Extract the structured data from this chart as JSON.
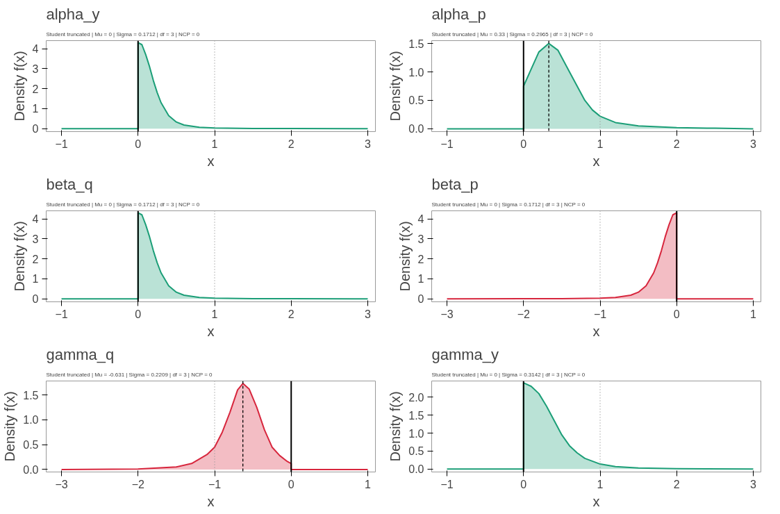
{
  "chart_data": [
    {
      "type": "area",
      "title": "alpha_y",
      "subtitle": "Student truncated | Mu = 0 | Sigma = 0.1712 | df = 3 | NCP = 0",
      "xlabel": "x",
      "ylabel": "Density f(x)",
      "x": [
        -1,
        0,
        0,
        0.05,
        0.1,
        0.15,
        0.2,
        0.25,
        0.3,
        0.4,
        0.5,
        0.6,
        0.8,
        1.0,
        1.5,
        2,
        3
      ],
      "series": [
        {
          "color": "#1b9e77",
          "values": [
            0,
            0,
            4.3,
            4.2,
            3.7,
            3.1,
            2.4,
            1.8,
            1.3,
            0.65,
            0.33,
            0.18,
            0.07,
            0.03,
            0.01,
            0.01,
            0
          ]
        }
      ],
      "xlim": [
        -1.2,
        3.1
      ],
      "ylim": [
        -0.15,
        4.4
      ],
      "xticks": [
        -1,
        0,
        1,
        2,
        3
      ],
      "yticks": [
        0,
        1,
        2,
        3,
        4
      ],
      "ref_lines": [
        {
          "axis": "x",
          "value": 0,
          "color": "#000000",
          "line_style": "solid"
        },
        {
          "axis": "x",
          "value": 1,
          "color": "#999999",
          "line_style": "dotted"
        }
      ]
    },
    {
      "type": "area",
      "title": "alpha_p",
      "subtitle": "Student truncated | Mu = 0.33 | Sigma = 0.2965 | df = 3 | NCP = 0",
      "xlabel": "x",
      "ylabel": "Density f(x)",
      "x": [
        -1,
        0,
        0,
        0.1,
        0.2,
        0.33,
        0.45,
        0.6,
        0.7,
        0.8,
        0.9,
        1.0,
        1.2,
        1.5,
        2,
        2.5,
        3
      ],
      "series": [
        {
          "color": "#1b9e77",
          "values": [
            0,
            0,
            0.75,
            1.05,
            1.35,
            1.5,
            1.38,
            1.0,
            0.75,
            0.5,
            0.33,
            0.22,
            0.11,
            0.05,
            0.02,
            0.01,
            0
          ]
        }
      ],
      "xlim": [
        -1.2,
        3.1
      ],
      "ylim": [
        -0.05,
        1.55
      ],
      "xticks": [
        -1,
        0,
        1,
        2,
        3
      ],
      "yticks": [
        {
          "value": 0,
          "label": "0.0"
        },
        {
          "value": 0.5,
          "label": "0.5"
        },
        {
          "value": 1,
          "label": "1.0"
        },
        {
          "value": 1.5,
          "label": "1.5"
        }
      ],
      "ref_lines": [
        {
          "axis": "x",
          "value": 0,
          "color": "#000000",
          "line_style": "solid"
        },
        {
          "axis": "x",
          "value": 1,
          "color": "#999999",
          "line_style": "dotted"
        },
        {
          "axis": "x",
          "value": 0.33,
          "color": "#000000",
          "line_style": "dashed"
        }
      ]
    },
    {
      "type": "area",
      "title": "beta_q",
      "subtitle": "Student truncated | Mu = 0 | Sigma = 0.1712 | df = 3 | NCP = 0",
      "xlabel": "x",
      "ylabel": "Density f(x)",
      "x": [
        -1,
        0,
        0,
        0.05,
        0.1,
        0.15,
        0.2,
        0.25,
        0.3,
        0.4,
        0.5,
        0.6,
        0.8,
        1.0,
        1.5,
        2,
        3
      ],
      "series": [
        {
          "color": "#1b9e77",
          "values": [
            0,
            0,
            4.3,
            4.2,
            3.7,
            3.1,
            2.4,
            1.8,
            1.3,
            0.65,
            0.33,
            0.18,
            0.07,
            0.03,
            0.01,
            0.01,
            0
          ]
        }
      ],
      "xlim": [
        -1.2,
        3.1
      ],
      "ylim": [
        -0.15,
        4.4
      ],
      "xticks": [
        -1,
        0,
        1,
        2,
        3
      ],
      "yticks": [
        0,
        1,
        2,
        3,
        4
      ],
      "ref_lines": [
        {
          "axis": "x",
          "value": 0,
          "color": "#000000",
          "line_style": "solid"
        },
        {
          "axis": "x",
          "value": 1,
          "color": "#999999",
          "line_style": "dotted"
        }
      ]
    },
    {
      "type": "area",
      "title": "beta_p",
      "subtitle": "Student truncated | Mu = 0 | Sigma = 0.1712 | df = 3 | NCP = 0",
      "xlabel": "x",
      "ylabel": "Density f(x)",
      "x": [
        -3,
        -2,
        -1.5,
        -1.0,
        -0.8,
        -0.6,
        -0.5,
        -0.4,
        -0.3,
        -0.25,
        -0.2,
        -0.15,
        -0.1,
        -0.05,
        0,
        0,
        1
      ],
      "series": [
        {
          "color": "#d7263d",
          "values": [
            0,
            0.01,
            0.01,
            0.03,
            0.07,
            0.18,
            0.33,
            0.65,
            1.3,
            1.8,
            2.4,
            3.1,
            3.7,
            4.2,
            4.3,
            0,
            0
          ]
        }
      ],
      "xlim": [
        -3.2,
        1.1
      ],
      "ylim": [
        -0.15,
        4.4
      ],
      "xticks": [
        -3,
        -2,
        -1,
        0,
        1
      ],
      "yticks": [
        0,
        1,
        2,
        3,
        4
      ],
      "ref_lines": [
        {
          "axis": "x",
          "value": 0,
          "color": "#000000",
          "line_style": "solid"
        },
        {
          "axis": "x",
          "value": -1,
          "color": "#999999",
          "line_style": "dotted"
        }
      ]
    },
    {
      "type": "area",
      "title": "gamma_q",
      "subtitle": "Student truncated | Mu = -0.631 | Sigma = 0.2209 | df = 3 | NCP = 0",
      "xlabel": "x",
      "ylabel": "Density f(x)",
      "x": [
        -3,
        -2,
        -1.5,
        -1.3,
        -1.1,
        -1.0,
        -0.9,
        -0.8,
        -0.7,
        -0.631,
        -0.55,
        -0.45,
        -0.35,
        -0.25,
        -0.15,
        -0.05,
        0,
        0,
        1
      ],
      "series": [
        {
          "color": "#d7263d",
          "values": [
            0,
            0.01,
            0.05,
            0.12,
            0.3,
            0.45,
            0.75,
            1.15,
            1.6,
            1.73,
            1.62,
            1.25,
            0.8,
            0.45,
            0.28,
            0.16,
            0.12,
            0,
            0
          ]
        }
      ],
      "xlim": [
        -3.2,
        1.1
      ],
      "ylim": [
        -0.05,
        1.78
      ],
      "xticks": [
        -3,
        -2,
        -1,
        0,
        1
      ],
      "yticks": [
        {
          "value": 0,
          "label": "0.0"
        },
        {
          "value": 0.5,
          "label": "0.5"
        },
        {
          "value": 1,
          "label": "1.0"
        },
        {
          "value": 1.5,
          "label": "1.5"
        }
      ],
      "ref_lines": [
        {
          "axis": "x",
          "value": 0,
          "color": "#000000",
          "line_style": "solid"
        },
        {
          "axis": "x",
          "value": -1,
          "color": "#999999",
          "line_style": "dotted"
        },
        {
          "axis": "x",
          "value": -0.631,
          "color": "#000000",
          "line_style": "dashed"
        }
      ]
    },
    {
      "type": "area",
      "title": "gamma_y",
      "subtitle": "Student truncated | Mu = 0 | Sigma = 0.3142 | df = 3 | NCP = 0",
      "xlabel": "x",
      "ylabel": "Density f(x)",
      "x": [
        -1,
        0,
        0,
        0.1,
        0.2,
        0.3,
        0.4,
        0.5,
        0.6,
        0.7,
        0.8,
        1.0,
        1.2,
        1.5,
        2,
        3
      ],
      "series": [
        {
          "color": "#1b9e77",
          "values": [
            0,
            0,
            2.4,
            2.3,
            2.1,
            1.75,
            1.35,
            0.95,
            0.65,
            0.45,
            0.3,
            0.14,
            0.07,
            0.03,
            0.01,
            0
          ]
        }
      ],
      "xlim": [
        -1.2,
        3.1
      ],
      "ylim": [
        -0.08,
        2.45
      ],
      "xticks": [
        -1,
        0,
        1,
        2,
        3
      ],
      "yticks": [
        {
          "value": 0,
          "label": "0.0"
        },
        {
          "value": 0.5,
          "label": "0.5"
        },
        {
          "value": 1,
          "label": "1.0"
        },
        {
          "value": 1.5,
          "label": "1.5"
        },
        {
          "value": 2,
          "label": "2.0"
        }
      ],
      "ref_lines": [
        {
          "axis": "x",
          "value": 0,
          "color": "#000000",
          "line_style": "solid"
        },
        {
          "axis": "x",
          "value": 1,
          "color": "#999999",
          "line_style": "dotted"
        }
      ]
    }
  ]
}
